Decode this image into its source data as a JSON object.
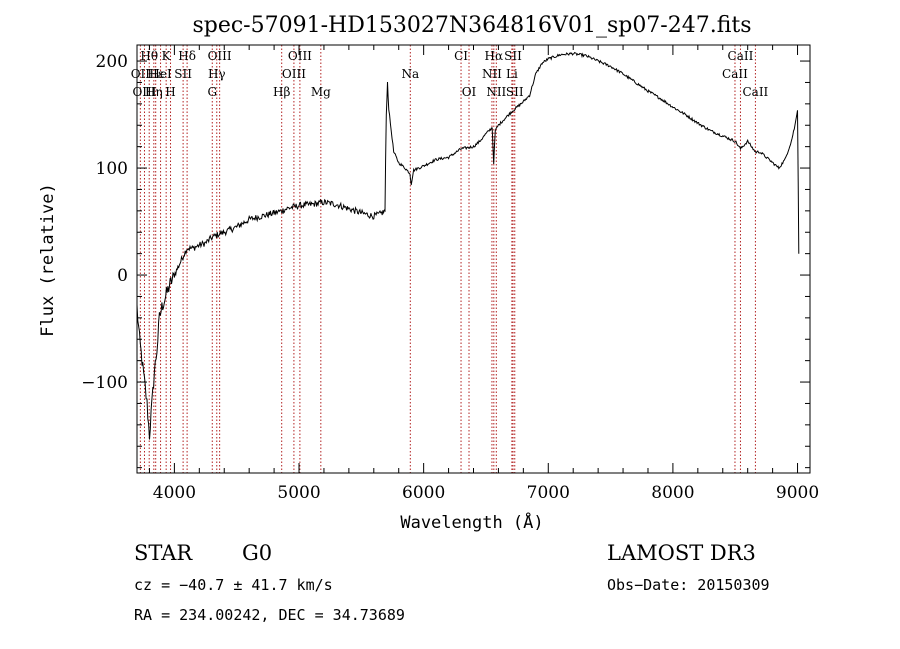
{
  "chart_data": {
    "type": "line",
    "title": "spec-57091-HD153027N364816V01_sp07-247.fits",
    "xlabel": "Wavelength (Å)",
    "ylabel": "Flux (relative)",
    "xlim": [
      3700,
      9100
    ],
    "ylim": [
      -185,
      215
    ],
    "xticks": [
      4000,
      5000,
      6000,
      7000,
      8000,
      9000
    ],
    "xtick_labels": [
      "4000",
      "5000",
      "6000",
      "7000",
      "8000",
      "9000"
    ],
    "yticks": [
      -100,
      0,
      100,
      200
    ],
    "ytick_labels": [
      "−100",
      "0",
      "100",
      "200"
    ],
    "grid": false,
    "series": [
      {
        "x": [
          3700,
          3720,
          3740,
          3760,
          3780,
          3800,
          3820,
          3840,
          3860,
          3880,
          3900,
          3930,
          3960,
          4000,
          4040,
          4080,
          4100,
          4150,
          4200,
          4250,
          4300,
          4350,
          4400,
          4500,
          4600,
          4700,
          4800,
          4860,
          4900,
          5000,
          5100,
          5200,
          5300,
          5400,
          5500,
          5600,
          5650,
          5690,
          5700,
          5710,
          5720,
          5740,
          5760,
          5800,
          5850,
          5890,
          5900,
          5920,
          6000,
          6100,
          6200,
          6300,
          6400,
          6450,
          6500,
          6550,
          6562,
          6575,
          6600,
          6700,
          6800,
          6850,
          6900,
          6950,
          7000,
          7100,
          7200,
          7300,
          7400,
          7500,
          7600,
          7700,
          7800,
          7900,
          8000,
          8100,
          8200,
          8300,
          8400,
          8500,
          8542,
          8600,
          8662,
          8700,
          8750,
          8800,
          8850,
          8900,
          8950,
          8980,
          9000,
          9010
        ],
        "y": [
          -30,
          -60,
          -80,
          -100,
          -120,
          -150,
          -120,
          -90,
          -70,
          -40,
          -30,
          -20,
          -10,
          0,
          10,
          20,
          25,
          25,
          28,
          30,
          35,
          38,
          40,
          45,
          52,
          55,
          58,
          60,
          62,
          65,
          66,
          68,
          66,
          62,
          58,
          55,
          57,
          60,
          150,
          180,
          155,
          135,
          115,
          105,
          100,
          95,
          85,
          98,
          102,
          108,
          110,
          118,
          120,
          125,
          132,
          138,
          105,
          135,
          140,
          152,
          162,
          168,
          188,
          198,
          202,
          206,
          207,
          205,
          200,
          195,
          188,
          180,
          172,
          165,
          157,
          150,
          142,
          135,
          130,
          125,
          118,
          125,
          115,
          115,
          110,
          105,
          100,
          108,
          125,
          140,
          155,
          20
        ]
      }
    ],
    "lines": [
      {
        "label": "Hθ",
        "x": 3798,
        "row": 0
      },
      {
        "label": "K",
        "x": 3934,
        "row": 0
      },
      {
        "label": "Hδ",
        "x": 4102,
        "row": 0
      },
      {
        "label": "OIII",
        "x": 4363,
        "row": 0
      },
      {
        "label": "OIII",
        "x": 5007,
        "row": 0
      },
      {
        "label": "CI",
        "x": 6300,
        "row": 0
      },
      {
        "label": "Hα",
        "x": 6563,
        "row": 0
      },
      {
        "label": "SII",
        "x": 6717,
        "row": 0
      },
      {
        "label": "CaII",
        "x": 8542,
        "row": 0
      },
      {
        "label": "OII",
        "x": 3727,
        "row": 1
      },
      {
        "label": "Hε",
        "x": 3850,
        "row": 1
      },
      {
        "label": "HeI",
        "x": 3889,
        "row": 1
      },
      {
        "label": "SII",
        "x": 4070,
        "row": 1
      },
      {
        "label": "Hγ",
        "x": 4340,
        "row": 1
      },
      {
        "label": "OIII",
        "x": 4959,
        "row": 1
      },
      {
        "label": "Na",
        "x": 5893,
        "row": 1
      },
      {
        "label": "NII",
        "x": 6548,
        "row": 1
      },
      {
        "label": "Li",
        "x": 6708,
        "row": 1
      },
      {
        "label": "CaII",
        "x": 8498,
        "row": 1
      },
      {
        "label": "OIII",
        "x": 3760,
        "row": 2
      },
      {
        "label": "Hη",
        "x": 3835,
        "row": 2
      },
      {
        "label": "H",
        "x": 3969,
        "row": 2
      },
      {
        "label": "G",
        "x": 4304,
        "row": 2
      },
      {
        "label": "Hβ",
        "x": 4861,
        "row": 2
      },
      {
        "label": "Mg",
        "x": 5175,
        "row": 2
      },
      {
        "label": "OI",
        "x": 6364,
        "row": 2
      },
      {
        "label": "NII",
        "x": 6583,
        "row": 2
      },
      {
        "label": "SII",
        "x": 6731,
        "row": 2
      },
      {
        "label": "CaII",
        "x": 8662,
        "row": 2
      }
    ],
    "line_color": "#b22222"
  },
  "info": {
    "class": "STAR",
    "subclass": "G0",
    "survey": "LAMOST DR3",
    "cz": "cz = −40.7 ± 41.7 km/s",
    "obs_date": "Obs−Date: 20150309",
    "radec": "RA = 234.00242, DEC =  34.73689"
  }
}
